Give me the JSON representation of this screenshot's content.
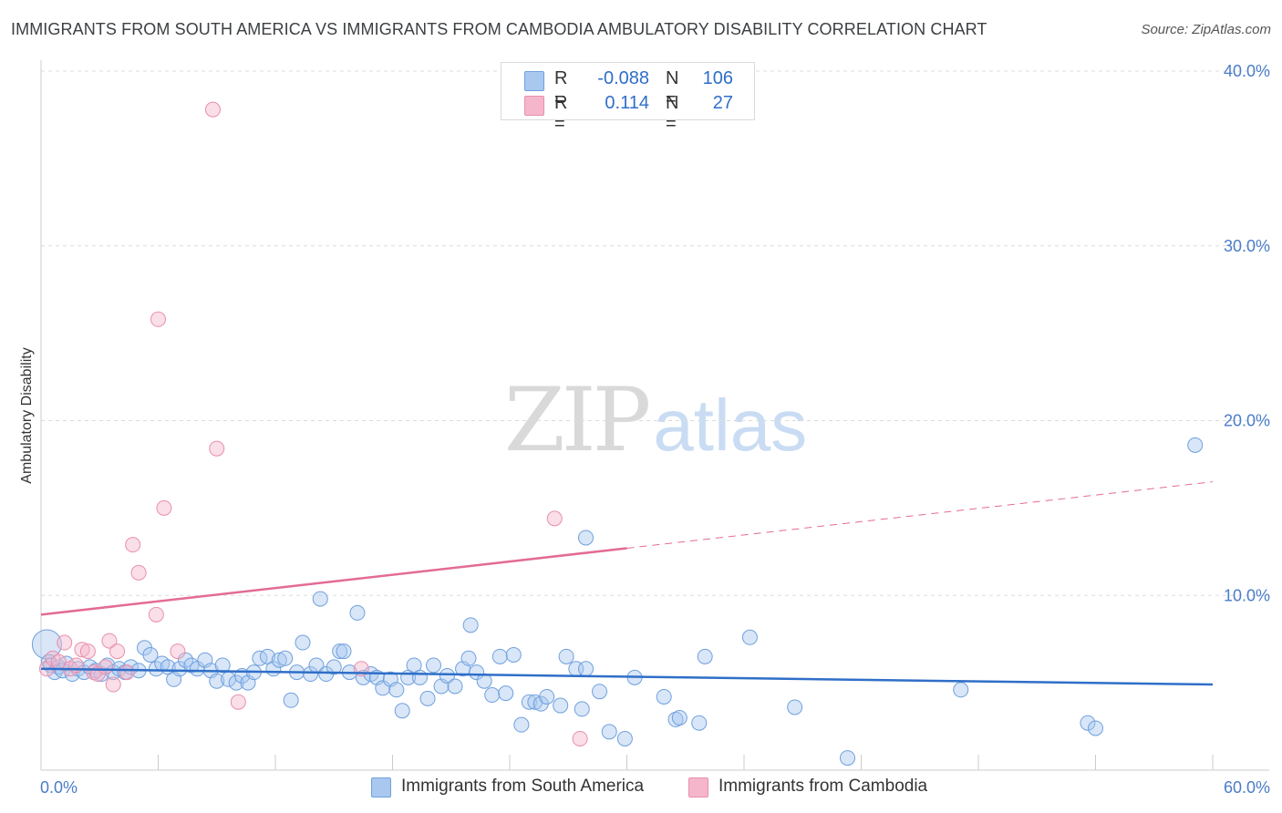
{
  "title": "IMMIGRANTS FROM SOUTH AMERICA VS IMMIGRANTS FROM CAMBODIA AMBULATORY DISABILITY CORRELATION CHART",
  "source": "Source: ZipAtlas.com",
  "watermark": {
    "zip": "ZIP",
    "atlas": "atlas"
  },
  "legend_top": {
    "rows": [
      {
        "r_label": "R =",
        "r_value": "-0.088",
        "n_label": "N =",
        "n_value": "106",
        "color": "#a9c8f0"
      },
      {
        "r_label": "R =",
        "r_value": "0.114",
        "n_label": "N =",
        "n_value": "27",
        "color": "#f5b6cb"
      }
    ]
  },
  "legend_bottom": {
    "items": [
      {
        "label": "Immigrants from South America",
        "color": "#a9c8f0"
      },
      {
        "label": "Immigrants from Cambodia",
        "color": "#f5b6cb"
      }
    ]
  },
  "chart_data": {
    "type": "scatter",
    "title": "IMMIGRANTS FROM SOUTH AMERICA VS IMMIGRANTS FROM CAMBODIA AMBULATORY DISABILITY CORRELATION CHART",
    "xlabel": "",
    "ylabel": "Ambulatory Disability",
    "xlim": [
      0,
      60
    ],
    "ylim": [
      0,
      40
    ],
    "x_tick_labels": [
      "0.0%",
      "60.0%"
    ],
    "y_ticks": [
      10,
      20,
      30,
      40
    ],
    "y_tick_labels": [
      "10.0%",
      "20.0%",
      "30.0%",
      "40.0%"
    ],
    "grid": "horizontal dashed",
    "legend_placement": "top-center",
    "series": [
      {
        "name": "Immigrants from South America",
        "color": "#a9c8f0",
        "stroke": "#6fa0dd",
        "trend": {
          "x": [
            0,
            60
          ],
          "y": [
            5.8,
            4.9
          ],
          "color": "#2f6fc8"
        },
        "points": [
          [
            0.3,
            7.2
          ],
          [
            0.4,
            6.2
          ],
          [
            0.5,
            6.0
          ],
          [
            0.7,
            5.6
          ],
          [
            0.9,
            5.9
          ],
          [
            1.1,
            5.7
          ],
          [
            1.3,
            6.1
          ],
          [
            1.6,
            5.5
          ],
          [
            1.9,
            5.8
          ],
          [
            2.2,
            5.6
          ],
          [
            2.5,
            5.9
          ],
          [
            2.8,
            5.7
          ],
          [
            3.1,
            5.5
          ],
          [
            3.4,
            6.0
          ],
          [
            3.7,
            5.6
          ],
          [
            4.0,
            5.8
          ],
          [
            4.3,
            5.6
          ],
          [
            4.6,
            5.9
          ],
          [
            5.0,
            5.7
          ],
          [
            5.3,
            7.0
          ],
          [
            5.6,
            6.6
          ],
          [
            5.9,
            5.8
          ],
          [
            6.2,
            6.1
          ],
          [
            6.5,
            5.9
          ],
          [
            6.8,
            5.2
          ],
          [
            7.1,
            5.8
          ],
          [
            7.4,
            6.3
          ],
          [
            7.7,
            6.0
          ],
          [
            8.0,
            5.8
          ],
          [
            8.4,
            6.3
          ],
          [
            8.7,
            5.7
          ],
          [
            9.0,
            5.1
          ],
          [
            9.3,
            6.0
          ],
          [
            9.6,
            5.2
          ],
          [
            10.0,
            5.0
          ],
          [
            10.3,
            5.4
          ],
          [
            10.6,
            5.0
          ],
          [
            10.9,
            5.6
          ],
          [
            11.2,
            6.4
          ],
          [
            11.6,
            6.5
          ],
          [
            11.9,
            5.8
          ],
          [
            12.2,
            6.3
          ],
          [
            12.5,
            6.4
          ],
          [
            12.8,
            4.0
          ],
          [
            13.1,
            5.6
          ],
          [
            13.4,
            7.3
          ],
          [
            13.8,
            5.5
          ],
          [
            14.1,
            6.0
          ],
          [
            14.3,
            9.8
          ],
          [
            14.6,
            5.5
          ],
          [
            15.0,
            5.9
          ],
          [
            15.3,
            6.8
          ],
          [
            15.5,
            6.8
          ],
          [
            15.8,
            5.6
          ],
          [
            16.2,
            9.0
          ],
          [
            16.5,
            5.3
          ],
          [
            16.9,
            5.5
          ],
          [
            17.2,
            5.3
          ],
          [
            17.5,
            4.7
          ],
          [
            17.9,
            5.2
          ],
          [
            18.2,
            4.6
          ],
          [
            18.5,
            3.4
          ],
          [
            18.8,
            5.3
          ],
          [
            19.1,
            6.0
          ],
          [
            19.4,
            5.3
          ],
          [
            19.8,
            4.1
          ],
          [
            20.1,
            6.0
          ],
          [
            20.5,
            4.8
          ],
          [
            20.8,
            5.4
          ],
          [
            21.2,
            4.8
          ],
          [
            21.6,
            5.8
          ],
          [
            21.9,
            6.4
          ],
          [
            22.0,
            8.3
          ],
          [
            22.3,
            5.6
          ],
          [
            22.7,
            5.1
          ],
          [
            23.1,
            4.3
          ],
          [
            23.5,
            6.5
          ],
          [
            23.8,
            4.4
          ],
          [
            24.2,
            6.6
          ],
          [
            24.6,
            2.6
          ],
          [
            25.0,
            3.9
          ],
          [
            25.3,
            3.9
          ],
          [
            25.6,
            3.8
          ],
          [
            25.9,
            4.2
          ],
          [
            26.6,
            3.7
          ],
          [
            26.9,
            6.5
          ],
          [
            27.4,
            5.8
          ],
          [
            27.7,
            3.5
          ],
          [
            27.9,
            5.8
          ],
          [
            27.9,
            13.3
          ],
          [
            28.6,
            4.5
          ],
          [
            29.1,
            2.2
          ],
          [
            29.9,
            1.8
          ],
          [
            30.4,
            5.3
          ],
          [
            31.9,
            4.2
          ],
          [
            32.5,
            2.9
          ],
          [
            32.7,
            3.0
          ],
          [
            33.7,
            2.7
          ],
          [
            34.0,
            6.5
          ],
          [
            36.3,
            7.6
          ],
          [
            38.6,
            3.6
          ],
          [
            41.3,
            0.7
          ],
          [
            47.1,
            4.6
          ],
          [
            53.6,
            2.7
          ],
          [
            54.0,
            2.4
          ],
          [
            59.1,
            18.6
          ]
        ]
      },
      {
        "name": "Immigrants from Cambodia",
        "color": "#f5b6cb",
        "stroke": "#e88fad",
        "trend": {
          "x": [
            0,
            30
          ],
          "y": [
            8.9,
            12.7
          ],
          "x_dashed": [
            30,
            60
          ],
          "y_dashed": [
            12.7,
            16.5
          ],
          "color": "#e36b95"
        },
        "points": [
          [
            0.3,
            5.8
          ],
          [
            0.6,
            6.4
          ],
          [
            0.9,
            6.2
          ],
          [
            1.2,
            7.3
          ],
          [
            1.5,
            5.8
          ],
          [
            1.8,
            6.0
          ],
          [
            2.1,
            6.9
          ],
          [
            2.4,
            6.8
          ],
          [
            2.7,
            5.6
          ],
          [
            2.9,
            5.5
          ],
          [
            3.3,
            5.9
          ],
          [
            3.5,
            7.4
          ],
          [
            3.7,
            4.9
          ],
          [
            3.9,
            6.8
          ],
          [
            4.4,
            5.6
          ],
          [
            4.7,
            12.9
          ],
          [
            5.0,
            11.3
          ],
          [
            5.9,
            8.9
          ],
          [
            6.0,
            25.8
          ],
          [
            6.3,
            15.0
          ],
          [
            7.0,
            6.8
          ],
          [
            8.8,
            37.8
          ],
          [
            9.0,
            18.4
          ],
          [
            10.1,
            3.9
          ],
          [
            16.4,
            5.8
          ],
          [
            26.3,
            14.4
          ],
          [
            27.6,
            1.8
          ]
        ]
      }
    ]
  }
}
